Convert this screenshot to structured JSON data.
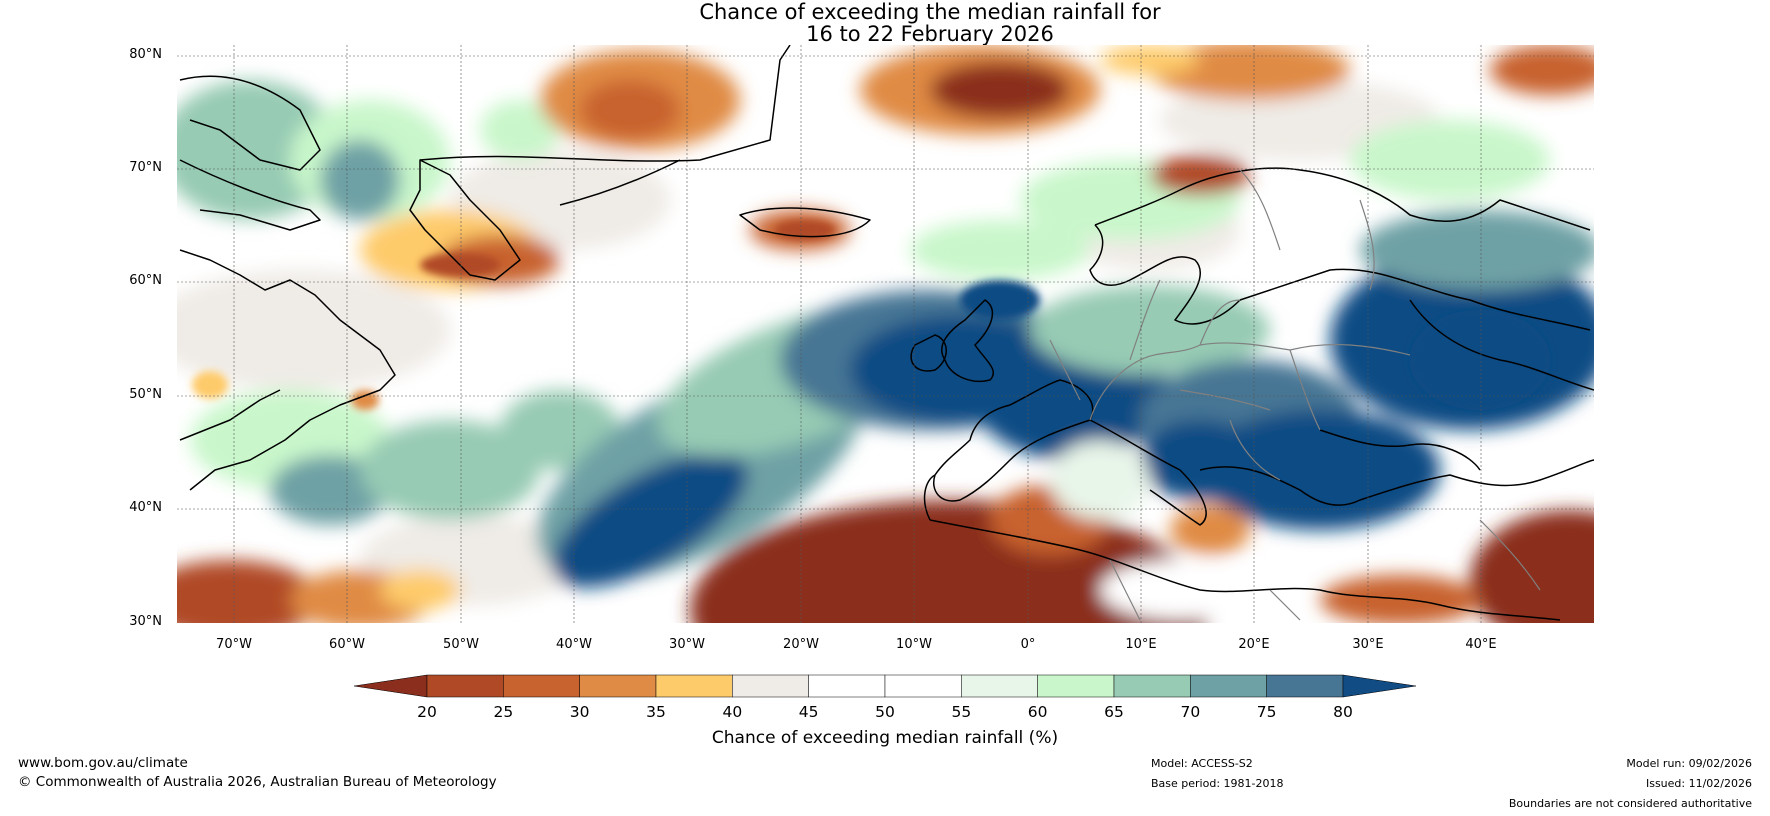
{
  "title": {
    "line1": "Chance of exceeding the median rainfall for",
    "line2": "16 to 22 February 2026"
  },
  "map": {
    "lat_labels": [
      "80°N",
      "70°N",
      "60°N",
      "50°N",
      "40°N",
      "30°N"
    ],
    "lon_labels": [
      "70°W",
      "60°W",
      "50°W",
      "40°W",
      "30°W",
      "20°W",
      "10°W",
      "0°",
      "10°E",
      "20°E",
      "30°E",
      "40°E"
    ],
    "lat_range": [
      30,
      81
    ],
    "lon_range": [
      -75,
      50
    ]
  },
  "colorbar": {
    "title": "Chance of exceeding median rainfall (%)",
    "ticks": [
      "20",
      "25",
      "30",
      "35",
      "40",
      "45",
      "50",
      "55",
      "60",
      "65",
      "70",
      "75",
      "80"
    ],
    "colors": [
      "#8b2e1d",
      "#b04a26",
      "#c8622f",
      "#e08b45",
      "#fecb6a",
      "#efebe6",
      "#ffffff",
      "#ffffff",
      "#e8f5e9",
      "#c9f7cb",
      "#97cbb4",
      "#6ea1a5",
      "#467694",
      "#114c84"
    ],
    "below_color": "#8b2e1d",
    "above_color": "#114c84"
  },
  "footer": {
    "website": "www.bom.gov.au/climate",
    "copyright": "© Commonwealth of Australia 2026, Australian Bureau of Meteorology",
    "model": "Model: ACCESS-S2",
    "base_period": "Base period: 1981-2018",
    "model_run": "Model run: 09/02/2026",
    "issued": "Issued: 11/02/2026",
    "disclaimer": "Boundaries are not considered authoritative"
  }
}
